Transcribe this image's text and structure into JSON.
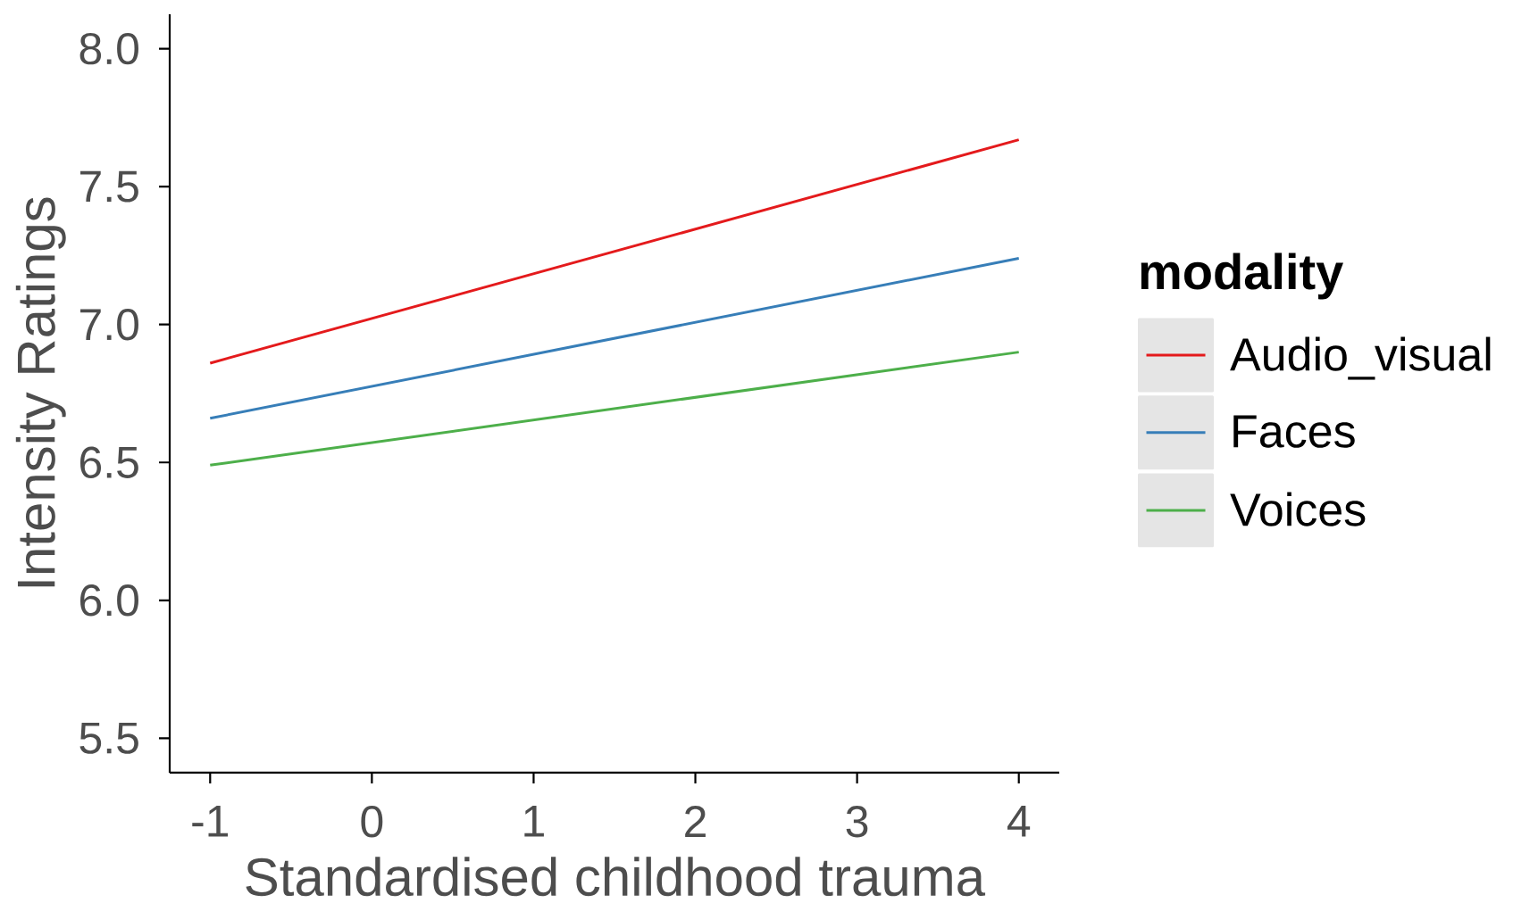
{
  "chart_data": {
    "type": "line",
    "xlabel": "Standardised childhood trauma",
    "ylabel": "Intensity Ratings",
    "legend_title": "modality",
    "x": [
      -1,
      4
    ],
    "series": [
      {
        "name": "Audio_visual",
        "color": "#e41a1c",
        "values": [
          6.86,
          7.67
        ]
      },
      {
        "name": "Faces",
        "color": "#377eb8",
        "values": [
          6.66,
          7.24
        ]
      },
      {
        "name": "Voices",
        "color": "#4daf4a",
        "values": [
          6.49,
          6.9
        ]
      }
    ],
    "xlim": [
      -1.25,
      4.25
    ],
    "ylim": [
      5.375,
      8.125
    ],
    "xticks": [
      -1,
      0,
      1,
      2,
      3,
      4
    ],
    "yticks": [
      5.5,
      {
        "value": 6,
        "label": "6.0"
      },
      6.5,
      {
        "value": 7,
        "label": "7.0"
      },
      7.5,
      {
        "value": 8,
        "label": "8.0"
      }
    ],
    "legend": "right",
    "marker": "none",
    "line_style": "solid"
  }
}
